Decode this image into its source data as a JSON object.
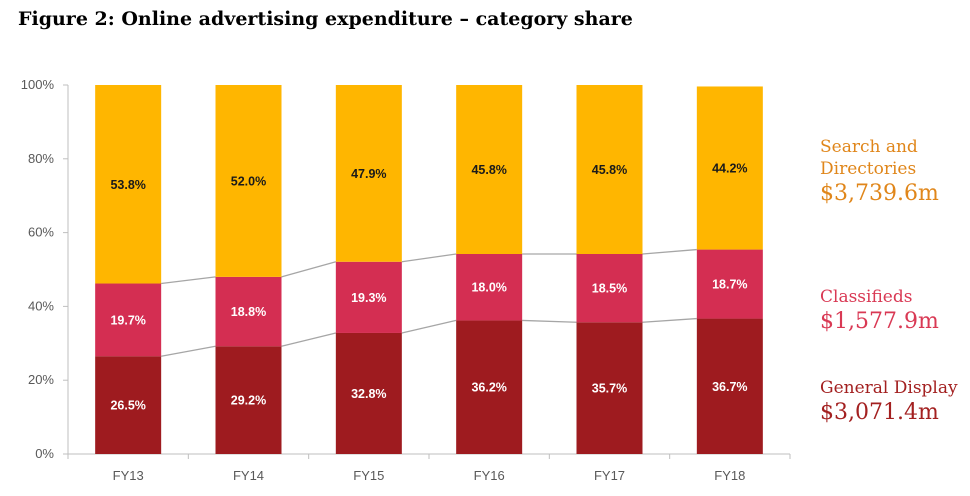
{
  "title": "Figure 2: Online advertising expenditure – category share",
  "chart_data": {
    "type": "bar",
    "stacked": true,
    "categories": [
      "FY13",
      "FY14",
      "FY15",
      "FY16",
      "FY17",
      "FY18"
    ],
    "ylim": [
      0,
      100
    ],
    "yticks": [
      "0%",
      "20%",
      "40%",
      "60%",
      "80%",
      "100%"
    ],
    "series": [
      {
        "name": "General Display",
        "amount": "$3,071.4m",
        "color": "#9e1b1f",
        "label_color": "#ffffff",
        "values": [
          26.5,
          29.2,
          32.8,
          36.2,
          35.7,
          36.7
        ],
        "labels": [
          "26.5%",
          "29.2%",
          "32.8%",
          "36.2%",
          "35.7%",
          "36.7%"
        ]
      },
      {
        "name": "Classifieds",
        "amount": "$1,577.9m",
        "color": "#d42e52",
        "label_color": "#ffffff",
        "values": [
          19.7,
          18.8,
          19.3,
          18.0,
          18.5,
          18.7
        ],
        "labels": [
          "19.7%",
          "18.8%",
          "19.3%",
          "18.0%",
          "18.5%",
          "18.7%"
        ]
      },
      {
        "name": "Search and\nDirectories",
        "amount": "$3,739.6m",
        "color": "#ffb600",
        "label_color": "#1a1a1a",
        "values": [
          53.8,
          52.0,
          47.9,
          45.8,
          45.8,
          44.2
        ],
        "labels": [
          "53.8%",
          "52.0%",
          "47.9%",
          "45.8%",
          "45.8%",
          "44.2%"
        ]
      }
    ],
    "legend_text_colors": [
      "#a32020",
      "#d93954",
      "#e0861a"
    ],
    "connector_lines": true,
    "grid": false,
    "legend_placement": "right"
  }
}
